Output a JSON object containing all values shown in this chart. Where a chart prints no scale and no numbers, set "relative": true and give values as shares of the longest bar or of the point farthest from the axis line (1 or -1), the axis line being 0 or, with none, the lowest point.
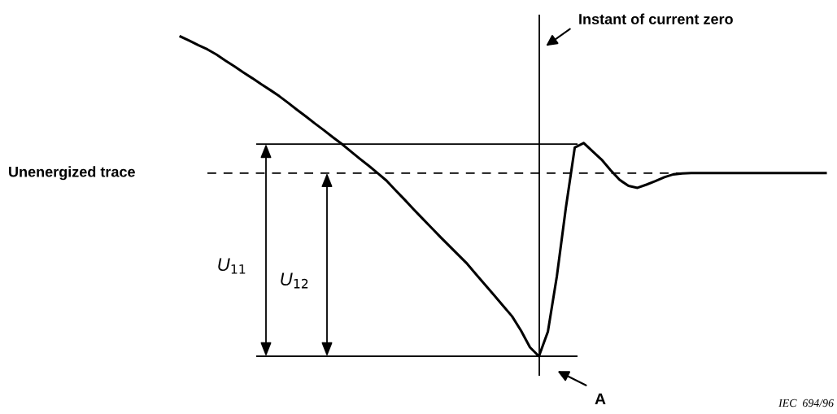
{
  "chart_data": {
    "type": "line",
    "relative": true,
    "categories": [
      null,
      null,
      null,
      null,
      null,
      null,
      null,
      null,
      null,
      null,
      null,
      null,
      null,
      null,
      null,
      null,
      null,
      null,
      null,
      null,
      null,
      null,
      null,
      null,
      null,
      null,
      null,
      null,
      null,
      null,
      null,
      null,
      null,
      null,
      null,
      null,
      null,
      null,
      null,
      null,
      null,
      null,
      null,
      null,
      null,
      null,
      null,
      null,
      null,
      null,
      null,
      null,
      null,
      null,
      null,
      null,
      null,
      null,
      null,
      null,
      null,
      null,
      null,
      null,
      null,
      null,
      null,
      null,
      null,
      null,
      null,
      null,
      null
    ],
    "series": [
      {
        "color": "#000000",
        "values": [
          1.0,
          0.987,
          0.973,
          0.96,
          0.944,
          0.925,
          0.907,
          0.888,
          0.87,
          0.851,
          0.833,
          0.814,
          0.793,
          0.771,
          0.75,
          0.728,
          0.707,
          0.685,
          0.664,
          0.641,
          0.618,
          0.596,
          0.573,
          0.549,
          0.519,
          0.49,
          0.46,
          0.431,
          0.402,
          0.373,
          0.345,
          0.317,
          0.289,
          0.256,
          0.223,
          0.191,
          0.158,
          0.125,
          0.08,
          0.028,
          0,
          0.077,
          0.25,
          0.463,
          0.653,
          0.667,
          0.641,
          0.615,
          0.582,
          0.552,
          0.533,
          0.527,
          0.537,
          0.548,
          0.56,
          0.569,
          0.572,
          0.573,
          0.573,
          0.573,
          0.573,
          0.573,
          0.573,
          0.573,
          0.573,
          0.573,
          0.573,
          0.573,
          0.573,
          0.573,
          0.573,
          0.573,
          0.573
        ]
      }
    ],
    "ref_lines": [
      {
        "axis": "y",
        "value": 0.664,
        "color": "#000000",
        "line_style": "solid"
      },
      {
        "axis": "y",
        "value": 0.573,
        "label": "Unenergized trace",
        "color": "#000000",
        "line_style": "dashed"
      },
      {
        "axis": "y",
        "value": 0,
        "color": "#000000",
        "line_style": "solid"
      }
    ],
    "annotations": [
      "Instant of current zero",
      "U$_{11}$",
      "U$_{12}$",
      "A",
      "IEC  694/96"
    ],
    "marker": "none",
    "line_style": "solid"
  }
}
